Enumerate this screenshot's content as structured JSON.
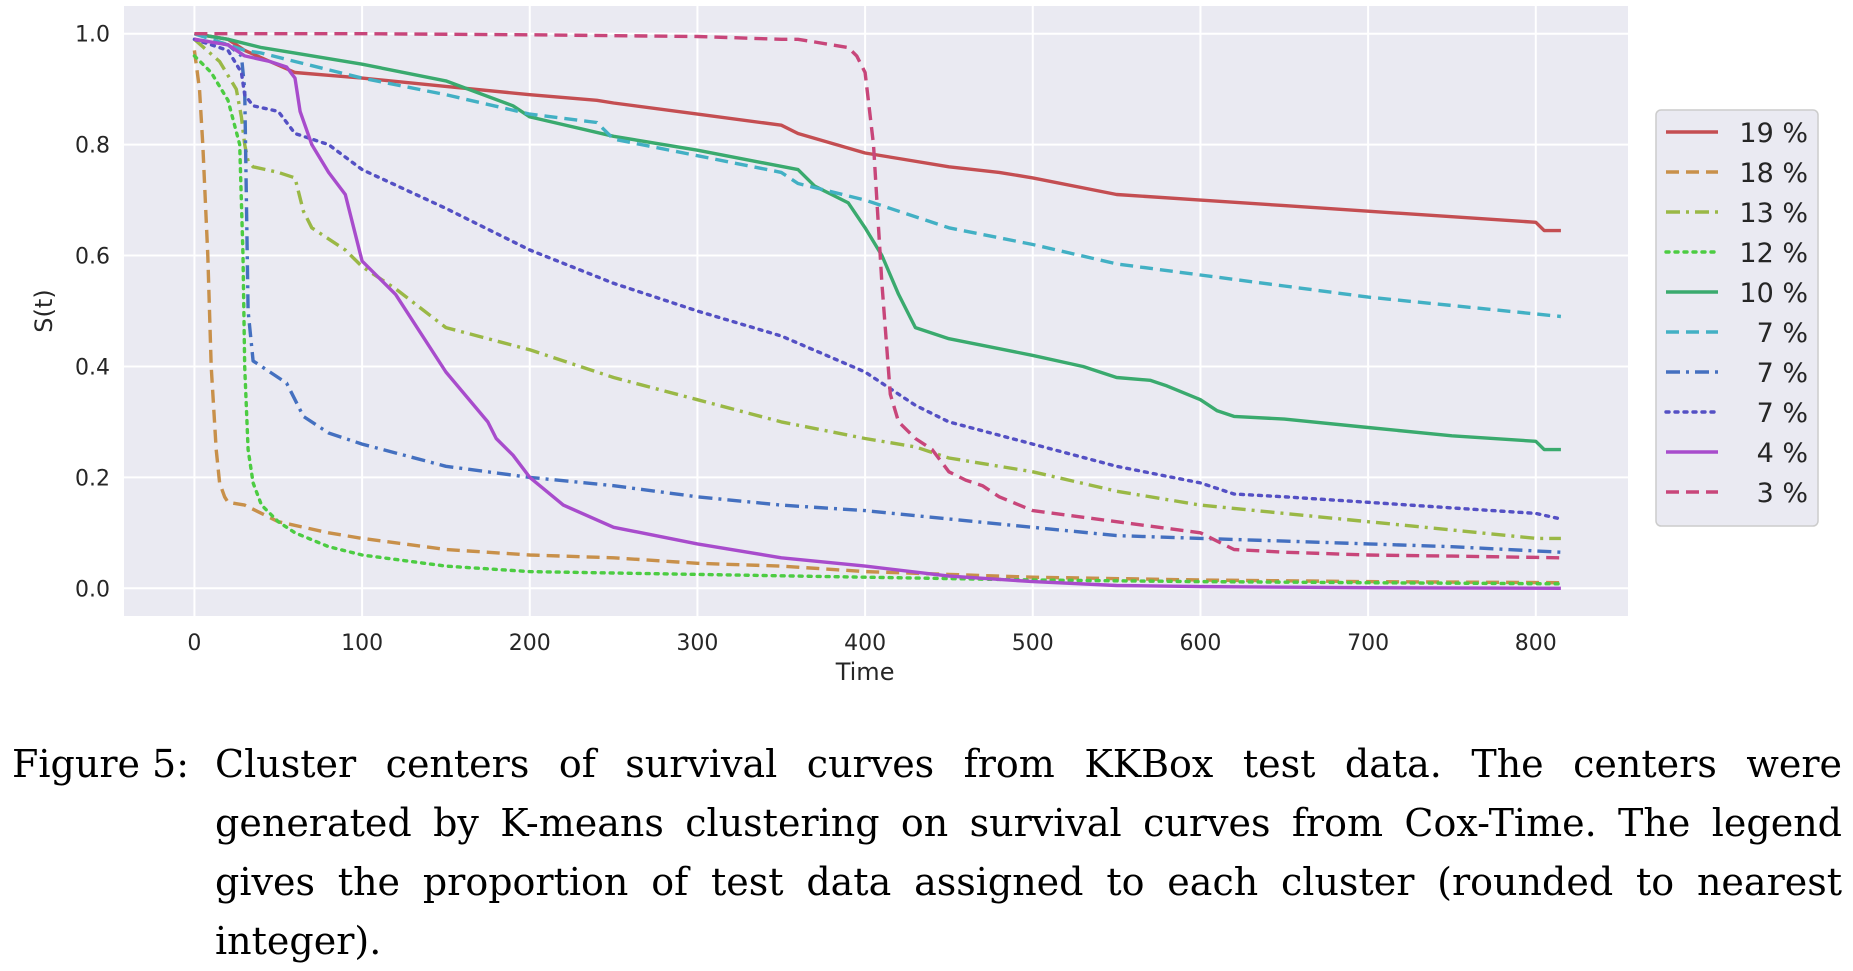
{
  "chart_data": {
    "type": "line",
    "title": "",
    "xlabel": "Time",
    "ylabel": "S(t)",
    "xlim": [
      -42,
      855
    ],
    "ylim": [
      -0.05,
      1.05
    ],
    "xticks": [
      0,
      100,
      200,
      300,
      400,
      500,
      600,
      700,
      800
    ],
    "yticks": [
      0.0,
      0.2,
      0.4,
      0.6,
      0.8,
      1.0
    ],
    "ytick_labels": [
      "0.0",
      "0.2",
      "0.4",
      "0.6",
      "0.8",
      "1.0"
    ],
    "grid": true,
    "legend_position": "right",
    "series": [
      {
        "name": "19 %",
        "color": "#c44e52",
        "style": "solid",
        "x": [
          0,
          20,
          30,
          45,
          60,
          80,
          100,
          150,
          200,
          240,
          250,
          300,
          350,
          360,
          400,
          420,
          450,
          480,
          500,
          550,
          600,
          650,
          700,
          750,
          800,
          805,
          815
        ],
        "y": [
          1.0,
          0.99,
          0.97,
          0.95,
          0.93,
          0.925,
          0.92,
          0.905,
          0.89,
          0.88,
          0.875,
          0.855,
          0.835,
          0.82,
          0.785,
          0.775,
          0.76,
          0.75,
          0.74,
          0.71,
          0.7,
          0.69,
          0.68,
          0.67,
          0.66,
          0.645,
          0.645
        ]
      },
      {
        "name": "18 %",
        "color": "#c8904a",
        "style": "dashed",
        "x": [
          0,
          3,
          5,
          8,
          10,
          13,
          15,
          18,
          20,
          30,
          50,
          80,
          100,
          150,
          200,
          250,
          300,
          350,
          400,
          450,
          500,
          600,
          700,
          815
        ],
        "y": [
          0.97,
          0.9,
          0.8,
          0.6,
          0.4,
          0.25,
          0.19,
          0.165,
          0.155,
          0.15,
          0.12,
          0.1,
          0.09,
          0.07,
          0.06,
          0.055,
          0.045,
          0.04,
          0.03,
          0.025,
          0.02,
          0.015,
          0.012,
          0.01
        ]
      },
      {
        "name": "13 %",
        "color": "#9ab846",
        "style": "dashdot",
        "x": [
          0,
          15,
          25,
          28,
          30,
          32,
          35,
          50,
          60,
          65,
          70,
          80,
          90,
          100,
          120,
          150,
          200,
          250,
          300,
          350,
          400,
          430,
          450,
          500,
          550,
          600,
          650,
          700,
          750,
          800,
          815
        ],
        "y": [
          0.99,
          0.95,
          0.9,
          0.85,
          0.8,
          0.77,
          0.76,
          0.75,
          0.74,
          0.68,
          0.65,
          0.63,
          0.61,
          0.58,
          0.54,
          0.47,
          0.43,
          0.38,
          0.34,
          0.3,
          0.27,
          0.255,
          0.235,
          0.21,
          0.175,
          0.15,
          0.135,
          0.12,
          0.105,
          0.09,
          0.09
        ]
      },
      {
        "name": "12 %",
        "color": "#4ccc42",
        "style": "dotted",
        "x": [
          0,
          10,
          20,
          27,
          29,
          30,
          32,
          35,
          40,
          50,
          60,
          80,
          100,
          150,
          200,
          300,
          400,
          500,
          600,
          700,
          815
        ],
        "y": [
          0.96,
          0.93,
          0.88,
          0.8,
          0.6,
          0.4,
          0.25,
          0.19,
          0.15,
          0.12,
          0.1,
          0.075,
          0.06,
          0.04,
          0.03,
          0.025,
          0.02,
          0.015,
          0.012,
          0.01,
          0.008
        ]
      },
      {
        "name": "10 %",
        "color": "#3aaa6e",
        "style": "solid",
        "x": [
          0,
          20,
          40,
          60,
          100,
          150,
          190,
          200,
          250,
          300,
          360,
          370,
          380,
          390,
          400,
          410,
          420,
          430,
          450,
          500,
          530,
          550,
          570,
          580,
          600,
          610,
          620,
          650,
          700,
          750,
          800,
          805,
          815
        ],
        "y": [
          1.0,
          0.99,
          0.975,
          0.965,
          0.945,
          0.915,
          0.87,
          0.85,
          0.815,
          0.79,
          0.755,
          0.725,
          0.71,
          0.695,
          0.65,
          0.6,
          0.53,
          0.47,
          0.45,
          0.42,
          0.4,
          0.38,
          0.375,
          0.365,
          0.34,
          0.32,
          0.31,
          0.305,
          0.29,
          0.275,
          0.265,
          0.25,
          0.25
        ]
      },
      {
        "name": "7 %",
        "color": "#42b0c4",
        "style": "dashed",
        "x": [
          0,
          20,
          30,
          40,
          60,
          100,
          150,
          200,
          240,
          250,
          300,
          350,
          360,
          400,
          450,
          500,
          550,
          600,
          650,
          700,
          750,
          815
        ],
        "y": [
          1.0,
          0.98,
          0.97,
          0.965,
          0.95,
          0.92,
          0.89,
          0.855,
          0.84,
          0.81,
          0.78,
          0.75,
          0.73,
          0.7,
          0.65,
          0.62,
          0.585,
          0.565,
          0.545,
          0.525,
          0.51,
          0.49
        ]
      },
      {
        "name": "7 %",
        "color": "#4470c0",
        "style": "dashdot",
        "x": [
          0,
          20,
          28,
          30,
          31,
          32,
          35,
          45,
          55,
          60,
          65,
          80,
          100,
          150,
          200,
          250,
          300,
          350,
          400,
          450,
          500,
          550,
          600,
          650,
          700,
          750,
          815
        ],
        "y": [
          0.99,
          0.98,
          0.96,
          0.9,
          0.7,
          0.5,
          0.41,
          0.39,
          0.37,
          0.34,
          0.31,
          0.28,
          0.26,
          0.22,
          0.2,
          0.185,
          0.165,
          0.15,
          0.14,
          0.125,
          0.11,
          0.095,
          0.09,
          0.085,
          0.08,
          0.075,
          0.065
        ]
      },
      {
        "name": "7 %",
        "color": "#5450c4",
        "style": "dotted",
        "x": [
          0,
          20,
          28,
          30,
          35,
          50,
          60,
          70,
          80,
          100,
          150,
          200,
          250,
          300,
          350,
          400,
          430,
          450,
          500,
          550,
          600,
          620,
          650,
          700,
          750,
          800,
          815
        ],
        "y": [
          0.99,
          0.97,
          0.93,
          0.89,
          0.87,
          0.86,
          0.82,
          0.81,
          0.8,
          0.755,
          0.685,
          0.61,
          0.55,
          0.5,
          0.455,
          0.39,
          0.33,
          0.3,
          0.26,
          0.22,
          0.19,
          0.17,
          0.165,
          0.155,
          0.145,
          0.135,
          0.125
        ]
      },
      {
        "name": "4 %",
        "color": "#a84ccc",
        "style": "solid",
        "x": [
          0,
          20,
          30,
          45,
          55,
          60,
          63,
          70,
          80,
          90,
          95,
          100,
          120,
          150,
          175,
          180,
          190,
          200,
          220,
          250,
          300,
          350,
          400,
          450,
          500,
          550,
          600,
          700,
          815
        ],
        "y": [
          0.99,
          0.98,
          0.96,
          0.95,
          0.94,
          0.92,
          0.86,
          0.8,
          0.75,
          0.71,
          0.65,
          0.59,
          0.53,
          0.39,
          0.3,
          0.27,
          0.24,
          0.2,
          0.15,
          0.11,
          0.08,
          0.055,
          0.04,
          0.022,
          0.012,
          0.005,
          0.003,
          0.001,
          0.0
        ]
      },
      {
        "name": "3 %",
        "color": "#c8467a",
        "style": "dashed",
        "x": [
          0,
          100,
          200,
          300,
          350,
          360,
          370,
          380,
          390,
          395,
          400,
          405,
          410,
          415,
          420,
          430,
          440,
          450,
          460,
          470,
          480,
          500,
          550,
          600,
          620,
          650,
          700,
          750,
          815
        ],
        "y": [
          1.0,
          1.0,
          0.998,
          0.995,
          0.99,
          0.99,
          0.985,
          0.98,
          0.975,
          0.96,
          0.93,
          0.8,
          0.55,
          0.35,
          0.3,
          0.27,
          0.25,
          0.21,
          0.195,
          0.185,
          0.165,
          0.14,
          0.12,
          0.1,
          0.07,
          0.065,
          0.06,
          0.058,
          0.055
        ]
      }
    ]
  },
  "caption": {
    "label": "Figure 5:",
    "text": "Cluster centers of survival curves from KKBox test data. The centers were generated by K-means clustering on survival curves from Cox-Time. The legend gives the proportion of test data assigned to each cluster (rounded to nearest integer)."
  }
}
